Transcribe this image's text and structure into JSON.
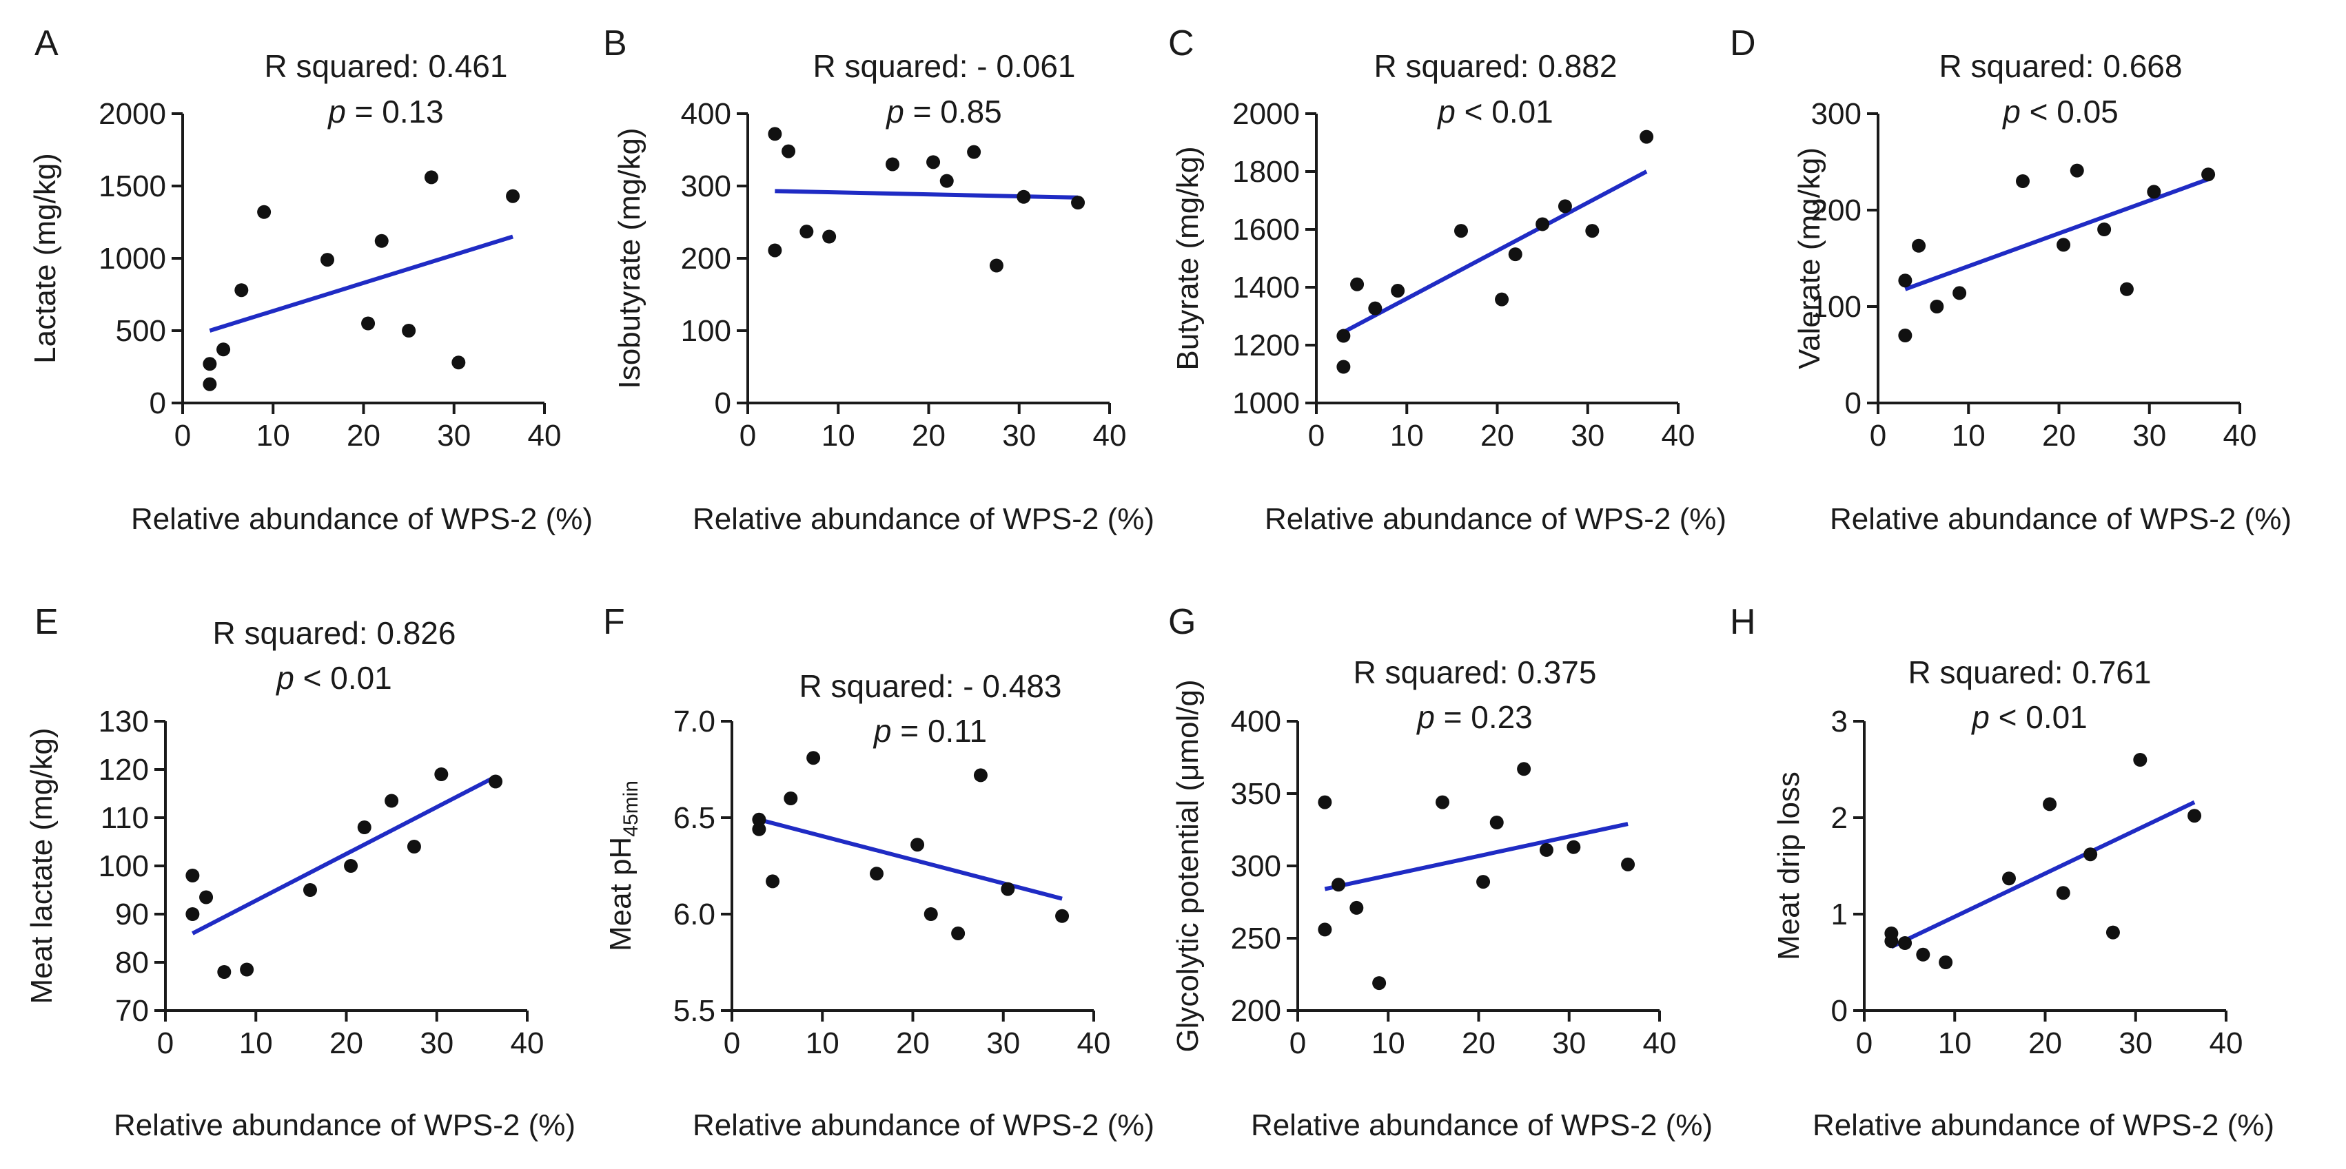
{
  "figure": {
    "xlabel_default": "Relative abundance of WPS-2 (%)"
  },
  "chart_data": [
    {
      "type": "scatter",
      "panel": "A",
      "stat_r2": "R squared: 0.461",
      "stat_p_symbol": "p",
      "stat_p_rest": " = 0.13",
      "xlabel": "Relative abundance of WPS-2 (%)",
      "ylabel": "Lactate  (mg/kg)",
      "xlim": [
        0,
        40
      ],
      "ylim": [
        0,
        2000
      ],
      "xticks": [
        0,
        10,
        20,
        30,
        40
      ],
      "yticks": [
        0,
        500,
        1000,
        1500,
        2000
      ],
      "x": [
        3,
        3,
        4.5,
        6.5,
        9,
        16,
        20.5,
        22,
        25,
        27.5,
        30.5,
        36.5
      ],
      "y": [
        130,
        270,
        370,
        780,
        1320,
        990,
        550,
        1120,
        500,
        1560,
        280,
        1430
      ],
      "fit": {
        "x": [
          3,
          36.5
        ],
        "y": [
          500,
          1150
        ]
      }
    },
    {
      "type": "scatter",
      "panel": "B",
      "stat_r2": "R squared: - 0.061",
      "stat_p_symbol": "p",
      "stat_p_rest": " = 0.85",
      "xlabel": "Relative abundance of WPS-2 (%)",
      "ylabel": "Isobutyrate (mg/kg)",
      "xlim": [
        0,
        40
      ],
      "ylim": [
        0,
        400
      ],
      "xticks": [
        0,
        10,
        20,
        30,
        40
      ],
      "yticks": [
        0,
        100,
        200,
        300,
        400
      ],
      "x": [
        3,
        3,
        4.5,
        6.5,
        9,
        16,
        20.5,
        22,
        25,
        27.5,
        30.5,
        36.5
      ],
      "y": [
        372,
        211,
        348,
        237,
        230,
        330,
        333,
        307,
        347,
        190,
        285,
        277
      ],
      "fit": {
        "x": [
          3,
          36.5
        ],
        "y": [
          293,
          284
        ]
      }
    },
    {
      "type": "scatter",
      "panel": "C",
      "stat_r2": "R squared: 0.882",
      "stat_p_symbol": "p",
      "stat_p_rest": " < 0.01",
      "xlabel": "Relative abundance of WPS-2 (%)",
      "ylabel": "Butyrate (mg/kg)",
      "xlim": [
        0,
        40
      ],
      "ylim": [
        1000,
        2000
      ],
      "xticks": [
        0,
        10,
        20,
        30,
        40
      ],
      "yticks": [
        1000,
        1200,
        1400,
        1600,
        1800,
        2000
      ],
      "x": [
        3,
        3,
        4.5,
        6.5,
        9,
        16,
        20.5,
        22,
        25,
        27.5,
        30.5,
        36.5
      ],
      "y": [
        1125,
        1232,
        1410,
        1327,
        1388,
        1595,
        1358,
        1514,
        1618,
        1680,
        1595,
        1920
      ],
      "fit": {
        "x": [
          3,
          36.5
        ],
        "y": [
          1245,
          1800
        ]
      }
    },
    {
      "type": "scatter",
      "panel": "D",
      "stat_r2": "R squared: 0.668",
      "stat_p_symbol": "p",
      "stat_p_rest": " < 0.05",
      "xlabel": "Relative abundance of WPS-2 (%)",
      "ylabel": "Valerate (mg/kg)",
      "xlim": [
        0,
        40
      ],
      "ylim": [
        0,
        300
      ],
      "xticks": [
        0,
        10,
        20,
        30,
        40
      ],
      "yticks": [
        0,
        100,
        200,
        300
      ],
      "x": [
        3,
        3,
        4.5,
        6.5,
        9,
        16,
        20.5,
        22,
        25,
        27.5,
        30.5,
        36.5
      ],
      "y": [
        70,
        127,
        163,
        100,
        114,
        230,
        164,
        241,
        180,
        118,
        219,
        237
      ],
      "fit": {
        "x": [
          3,
          36.5
        ],
        "y": [
          118,
          232
        ]
      }
    },
    {
      "type": "scatter",
      "panel": "E",
      "stat_r2": "R squared: 0.826",
      "stat_p_symbol": "p",
      "stat_p_rest": " < 0.01",
      "xlabel": "Relative abundance of WPS-2 (%)",
      "ylabel": "Meat lactate (mg/kg)",
      "xlim": [
        0,
        40
      ],
      "ylim": [
        70,
        130
      ],
      "xticks": [
        0,
        10,
        20,
        30,
        40
      ],
      "yticks": [
        70,
        80,
        90,
        100,
        110,
        120,
        130
      ],
      "x": [
        3,
        3,
        4.5,
        6.5,
        9,
        16,
        20.5,
        22,
        25,
        27.5,
        30.5,
        36.5
      ],
      "y": [
        90,
        98,
        93.5,
        78,
        78.5,
        95,
        100,
        108,
        113.5,
        104,
        119,
        117.5
      ],
      "fit": {
        "x": [
          3,
          36.5
        ],
        "y": [
          86,
          118.5
        ]
      }
    },
    {
      "type": "scatter",
      "panel": "F",
      "stat_r2": "R squared: - 0.483",
      "stat_p_symbol": "p",
      "stat_p_rest": " = 0.11",
      "xlabel": "Relative abundance of WPS-2 (%)",
      "ylabel_main": "Meat pH",
      "ylabel_sub": "45min",
      "xlim": [
        0,
        40
      ],
      "ylim": [
        5.5,
        7.0
      ],
      "xticks": [
        0,
        10,
        20,
        30,
        40
      ],
      "yticks": [
        "5.5",
        "6.0",
        "6.5",
        "7.0"
      ],
      "x": [
        3,
        3,
        4.5,
        6.5,
        9,
        16,
        20.5,
        22,
        25,
        27.5,
        30.5,
        36.5
      ],
      "y": [
        6.44,
        6.49,
        6.17,
        6.6,
        6.81,
        6.21,
        6.36,
        6.0,
        5.9,
        6.72,
        6.13,
        5.99
      ],
      "fit": {
        "x": [
          3,
          36.5
        ],
        "y": [
          6.49,
          6.08
        ]
      }
    },
    {
      "type": "scatter",
      "panel": "G",
      "stat_r2": "R squared: 0.375",
      "stat_p_symbol": "p",
      "stat_p_rest": " = 0.23",
      "xlabel": "Relative abundance of WPS-2 (%)",
      "ylabel": "Glycolytic potential (μmol/g)",
      "xlim": [
        0,
        40
      ],
      "ylim": [
        200,
        400
      ],
      "xticks": [
        0,
        10,
        20,
        30,
        40
      ],
      "yticks": [
        200,
        250,
        300,
        350,
        400
      ],
      "x": [
        3,
        3,
        4.5,
        6.5,
        9,
        16,
        20.5,
        22,
        25,
        27.5,
        30.5,
        36.5
      ],
      "y": [
        256,
        344,
        287,
        271,
        219,
        344,
        289,
        330,
        367,
        311,
        313,
        301
      ],
      "fit": {
        "x": [
          3,
          36.5
        ],
        "y": [
          284,
          329
        ]
      }
    },
    {
      "type": "scatter",
      "panel": "H",
      "stat_r2": "R squared: 0.761",
      "stat_p_symbol": "p",
      "stat_p_rest": " < 0.01",
      "xlabel": "Relative abundance of WPS-2 (%)",
      "ylabel": "Meat drip loss",
      "xlim": [
        0,
        40
      ],
      "ylim": [
        0,
        3
      ],
      "xticks": [
        0,
        10,
        20,
        30,
        40
      ],
      "yticks": [
        0,
        1,
        2,
        3
      ],
      "x": [
        3,
        3,
        4.5,
        6.5,
        9,
        16,
        20.5,
        22,
        25,
        27.5,
        30.5,
        36.5
      ],
      "y": [
        0.72,
        0.8,
        0.7,
        0.58,
        0.5,
        1.37,
        2.14,
        1.22,
        1.62,
        0.81,
        2.6,
        2.02
      ],
      "fit": {
        "x": [
          3,
          36.5
        ],
        "y": [
          0.66,
          2.16
        ]
      }
    }
  ]
}
